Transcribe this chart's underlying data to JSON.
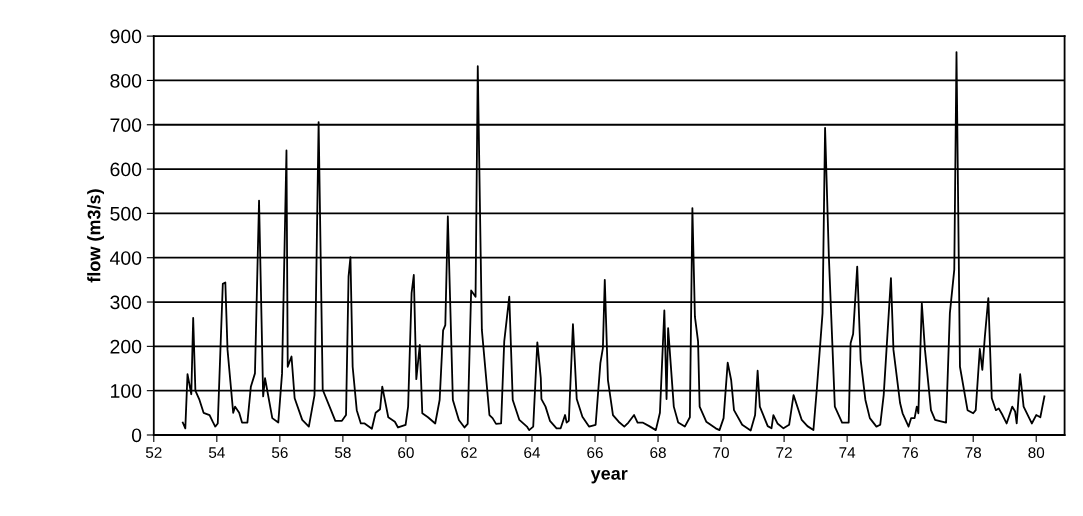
{
  "chart_data": {
    "type": "line",
    "xlabel": "year",
    "ylabel": "flow (m3/s)",
    "xlim": [
      52,
      80.9
    ],
    "xticks": [
      52,
      54,
      56,
      58,
      60,
      62,
      64,
      66,
      68,
      70,
      72,
      74,
      76,
      78,
      80
    ],
    "ylim": [
      0,
      900
    ],
    "yticks": [
      0,
      100,
      200,
      300,
      400,
      500,
      600,
      700,
      800,
      900
    ],
    "grid": "y",
    "marker": "none",
    "line_style": "solid",
    "series": [
      {
        "color": "#000000",
        "x": [
          52.92,
          53.0,
          53.07,
          53.19,
          53.25,
          53.32,
          53.45,
          53.58,
          53.77,
          53.87,
          53.95,
          54.03,
          54.19,
          54.27,
          54.34,
          54.52,
          54.58,
          54.71,
          54.8,
          54.97,
          55.08,
          55.21,
          55.34,
          55.47,
          55.53,
          55.76,
          55.95,
          56.07,
          56.21,
          56.25,
          56.37,
          56.47,
          56.71,
          56.92,
          57.1,
          57.23,
          57.36,
          57.6,
          57.76,
          57.97,
          58.1,
          58.18,
          58.24,
          58.31,
          58.44,
          58.57,
          58.69,
          58.92,
          59.04,
          59.18,
          59.25,
          59.44,
          59.65,
          59.75,
          59.99,
          60.07,
          60.18,
          60.25,
          60.33,
          60.44,
          60.52,
          60.7,
          60.93,
          61.07,
          61.18,
          61.25,
          61.33,
          61.49,
          61.68,
          61.86,
          61.96,
          62.07,
          62.21,
          62.28,
          62.41,
          62.65,
          62.75,
          62.86,
          63.02,
          63.12,
          63.28,
          63.39,
          63.6,
          63.84,
          63.91,
          64.04,
          64.17,
          64.28,
          64.3,
          64.43,
          64.57,
          64.78,
          64.91,
          65.05,
          65.1,
          65.17,
          65.3,
          65.42,
          65.6,
          65.81,
          66.02,
          66.17,
          66.25,
          66.31,
          66.41,
          66.57,
          66.75,
          66.93,
          67.06,
          67.24,
          67.35,
          67.51,
          67.72,
          67.93,
          68.06,
          68.2,
          68.27,
          68.32,
          68.5,
          68.64,
          68.85,
          69.01,
          69.09,
          69.17,
          69.27,
          69.32,
          69.53,
          69.83,
          69.95,
          70.08,
          70.21,
          70.32,
          70.41,
          70.67,
          70.94,
          71.08,
          71.16,
          71.23,
          71.48,
          71.6,
          71.66,
          71.79,
          71.98,
          72.16,
          72.3,
          72.56,
          72.74,
          72.93,
          73.04,
          73.22,
          73.3,
          73.42,
          73.61,
          73.84,
          74.05,
          74.11,
          74.19,
          74.32,
          74.43,
          74.58,
          74.72,
          74.93,
          75.05,
          75.16,
          75.39,
          75.47,
          75.68,
          75.76,
          75.95,
          76.03,
          76.14,
          76.21,
          76.26,
          76.37,
          76.47,
          76.66,
          76.79,
          76.91,
          77.14,
          77.26,
          77.4,
          77.47,
          77.58,
          77.82,
          78.0,
          78.08,
          78.21,
          78.29,
          78.37,
          78.48,
          78.59,
          78.72,
          78.81,
          78.93,
          79.06,
          79.24,
          79.33,
          79.38,
          79.49,
          79.6,
          79.86,
          80.0,
          80.13,
          80.26
        ],
        "values": [
          28,
          15,
          137,
          92,
          264,
          100,
          79,
          50,
          45,
          30,
          19,
          26,
          341,
          344,
          192,
          50,
          64,
          50,
          28,
          28,
          109,
          139,
          529,
          87,
          128,
          38,
          28,
          139,
          642,
          154,
          177,
          83,
          34,
          19,
          90,
          706,
          102,
          60,
          32,
          32,
          45,
          358,
          401,
          154,
          56,
          26,
          26,
          14,
          50,
          58,
          109,
          40,
          30,
          17,
          23,
          64,
          320,
          361,
          126,
          203,
          49,
          40,
          26,
          79,
          236,
          248,
          493,
          79,
          34,
          17,
          25,
          326,
          312,
          832,
          237,
          45,
          38,
          25,
          26,
          211,
          312,
          79,
          34,
          19,
          11,
          19,
          209,
          128,
          81,
          64,
          32,
          15,
          15,
          45,
          28,
          32,
          250,
          81,
          41,
          19,
          23,
          162,
          196,
          350,
          124,
          45,
          30,
          19,
          28,
          45,
          28,
          28,
          20,
          11,
          50,
          281,
          81,
          241,
          64,
          28,
          19,
          40,
          512,
          267,
          211,
          64,
          30,
          15,
          11,
          38,
          163,
          124,
          56,
          23,
          10,
          45,
          145,
          64,
          20,
          15,
          45,
          26,
          15,
          23,
          90,
          34,
          20,
          11,
          105,
          275,
          693,
          403,
          64,
          28,
          28,
          207,
          228,
          380,
          169,
          79,
          38,
          19,
          23,
          90,
          354,
          192,
          72,
          49,
          19,
          38,
          38,
          64,
          49,
          297,
          192,
          56,
          34,
          32,
          28,
          275,
          373,
          864,
          154,
          56,
          49,
          56,
          194,
          147,
          222,
          309,
          83,
          56,
          60,
          45,
          26,
          64,
          53,
          26,
          137,
          64,
          26,
          45,
          40,
          87
        ]
      }
    ]
  }
}
